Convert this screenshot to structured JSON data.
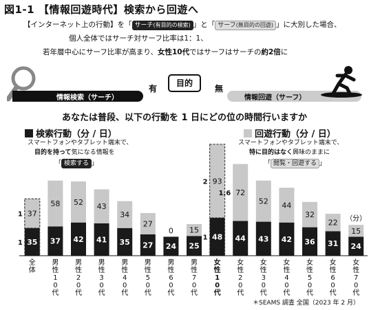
{
  "figure": {
    "title": "図1-1 【情報回遊時代】検索から回遊へ",
    "intro_line1_a": "【インターネット上の行動】を「",
    "intro_pill_search": "サーチ",
    "intro_pill_search_note": "(有目的の検索)",
    "intro_line1_b": "」と「",
    "intro_pill_surf": "サーフ",
    "intro_pill_surf_note": "(無目的の回遊)",
    "intro_line1_c": "」に大別した場合、",
    "intro_line2": "個人全体ではサーチ対サーフ比率は1：1、",
    "intro_line3_a": "若年層中心にサーフ比率が高まり、",
    "intro_line3_b": "女性10代",
    "intro_line3_c": "ではサーフはサーチの",
    "intro_line3_d": "約2倍",
    "intro_line3_e": "に",
    "banner_left": "情報検索（サーチ）",
    "banner_right": "情報回遊（サーフ）",
    "word_yes": "有",
    "word_purpose": "目的",
    "word_no": "無",
    "question": "あなたは普段、以下の行動を 1 日にどの位の時間行いますか",
    "search_title": "検索行動（分 / 日）",
    "search_desc1": "スマートフォンやタブレット端末で、",
    "search_desc2_bold": "目的を持って",
    "search_desc2_rest": "気になる情報を",
    "search_pill": "検索する",
    "surf_title": "回遊行動（分 / 日）",
    "surf_desc1": "スマートフォンやタブレット端末で、",
    "surf_desc2_bold": "特に目的はなく",
    "surf_desc2_rest": "興味のままに",
    "surf_pill": "閲覧・回遊する",
    "source": "＊SEAMS 調査 全国（2023 年 2 月）"
  },
  "colors": {
    "search": "#1a1a1a",
    "surf": "#c8c8c8",
    "text": "#111111"
  },
  "chart_data": {
    "type": "bar",
    "stacked": true,
    "categories": [
      "全体",
      "男性10代",
      "男性20代",
      "男性30代",
      "男性40代",
      "男性50代",
      "男性60代",
      "男性70代",
      "女性10代",
      "女性20代",
      "女性30代",
      "女性40代",
      "女性50代",
      "女性60代",
      "女性70代"
    ],
    "series": [
      {
        "name": "検索行動（分 / 日）",
        "values": [
          35,
          37,
          42,
          41,
          35,
          27,
          24,
          25,
          48,
          44,
          43,
          42,
          36,
          31,
          24
        ]
      },
      {
        "name": "回遊行動（分 / 日）",
        "values": [
          37,
          58,
          52,
          43,
          34,
          27,
          0,
          15,
          93,
          72,
          52,
          44,
          32,
          22,
          15
        ]
      }
    ],
    "ratio_labels": [
      {
        "category": "全体",
        "search": "1",
        "surf": "1"
      },
      {
        "category": "女性10代",
        "search": "1",
        "surf": "2"
      },
      {
        "category": "女性20代",
        "surf": "1.6"
      }
    ],
    "unit_label": "（分）"
  }
}
